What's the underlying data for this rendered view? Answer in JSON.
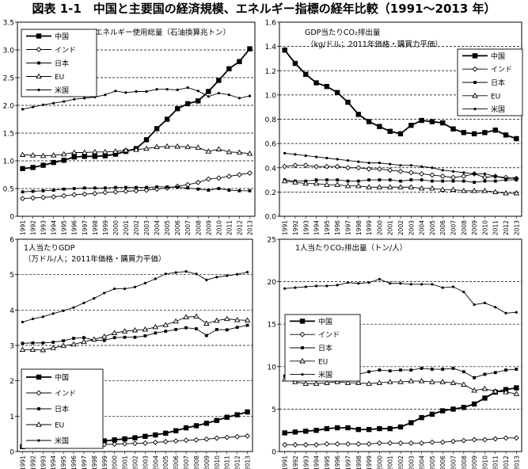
{
  "page_title": "図表 1-1　中国と主要国の経済規模、エネルギー指標の経年比較（1991〜2013 年）",
  "chart_data": [
    {
      "type": "line",
      "title": "エネルギー使用総量（石油換算兆トン）",
      "subtitle": "",
      "ylim": [
        0,
        3.5
      ],
      "y_ticks": [
        "0",
        "0.5",
        "1.0",
        "1.5",
        "2.0",
        "2.5",
        "3.0",
        "3.5"
      ],
      "grid": "horizontal dashed",
      "legend_position": "top-left",
      "categories": [
        "1991",
        "1992",
        "1993",
        "1994",
        "1995",
        "1996",
        "1997",
        "1998",
        "1999",
        "2000",
        "2001",
        "2002",
        "2003",
        "2004",
        "2005",
        "2006",
        "2007",
        "2008",
        "2009",
        "2010",
        "2011",
        "2012",
        "2013"
      ],
      "series": [
        {
          "name": "中国",
          "marker": "filled-square",
          "values": [
            0.86,
            0.88,
            0.92,
            0.97,
            1.01,
            1.07,
            1.08,
            1.08,
            1.09,
            1.12,
            1.17,
            1.22,
            1.38,
            1.58,
            1.75,
            1.94,
            2.03,
            2.08,
            2.25,
            2.45,
            2.66,
            2.79,
            3.02
          ]
        },
        {
          "name": "インド",
          "marker": "open-diamond",
          "values": [
            0.32,
            0.33,
            0.34,
            0.35,
            0.37,
            0.39,
            0.4,
            0.41,
            0.43,
            0.44,
            0.45,
            0.46,
            0.47,
            0.49,
            0.51,
            0.54,
            0.57,
            0.61,
            0.67,
            0.69,
            0.72,
            0.75,
            0.78
          ]
        },
        {
          "name": "日本",
          "marker": "filled-small-square",
          "values": [
            0.44,
            0.45,
            0.46,
            0.47,
            0.49,
            0.5,
            0.51,
            0.51,
            0.51,
            0.52,
            0.52,
            0.52,
            0.52,
            0.53,
            0.53,
            0.52,
            0.51,
            0.49,
            0.47,
            0.5,
            0.47,
            0.46,
            0.46
          ]
        },
        {
          "name": "EU",
          "marker": "open-triangle",
          "values": [
            1.11,
            1.1,
            1.09,
            1.1,
            1.12,
            1.15,
            1.15,
            1.16,
            1.16,
            1.17,
            1.19,
            1.2,
            1.22,
            1.25,
            1.26,
            1.26,
            1.25,
            1.24,
            1.17,
            1.21,
            1.16,
            1.15,
            1.13
          ]
        },
        {
          "name": "米国",
          "marker": "dot",
          "values": [
            1.93,
            1.97,
            2.01,
            2.04,
            2.07,
            2.11,
            2.13,
            2.15,
            2.19,
            2.26,
            2.23,
            2.25,
            2.25,
            2.29,
            2.29,
            2.28,
            2.32,
            2.26,
            2.16,
            2.22,
            2.19,
            2.13,
            2.17
          ]
        }
      ]
    },
    {
      "type": "line",
      "title": "GDP当たりCO₂排出量",
      "subtitle": "（kg/ドル；2011年価格・購買力平価）",
      "ylim": [
        0,
        1.6
      ],
      "y_ticks": [
        "0.0",
        "0.2",
        "0.4",
        "0.6",
        "0.8",
        "1.0",
        "1.2",
        "1.4",
        "1.6"
      ],
      "grid": "horizontal dashed",
      "legend_position": "top-right",
      "categories": [
        "1991",
        "1992",
        "1993",
        "1994",
        "1995",
        "1996",
        "1997",
        "1998",
        "1999",
        "2000",
        "2001",
        "2002",
        "2003",
        "2004",
        "2005",
        "2006",
        "2007",
        "2008",
        "2009",
        "2010",
        "2011",
        "2012",
        "2013"
      ],
      "series": [
        {
          "name": "中国",
          "marker": "filled-square",
          "values": [
            1.37,
            1.26,
            1.17,
            1.1,
            1.07,
            1.02,
            0.94,
            0.84,
            0.78,
            0.74,
            0.7,
            0.68,
            0.75,
            0.79,
            0.78,
            0.77,
            0.72,
            0.69,
            0.68,
            0.69,
            0.71,
            0.67,
            0.64
          ]
        },
        {
          "name": "インド",
          "marker": "open-diamond",
          "values": [
            0.41,
            0.42,
            0.42,
            0.41,
            0.41,
            0.41,
            0.4,
            0.4,
            0.39,
            0.39,
            0.38,
            0.37,
            0.36,
            0.35,
            0.34,
            0.33,
            0.32,
            0.33,
            0.35,
            0.32,
            0.33,
            0.32,
            0.31
          ]
        },
        {
          "name": "日本",
          "marker": "filled-small-square",
          "values": [
            0.3,
            0.29,
            0.29,
            0.3,
            0.3,
            0.3,
            0.29,
            0.29,
            0.3,
            0.3,
            0.3,
            0.29,
            0.3,
            0.3,
            0.29,
            0.29,
            0.29,
            0.29,
            0.28,
            0.29,
            0.29,
            0.3,
            0.3
          ]
        },
        {
          "name": "EU",
          "marker": "open-triangle",
          "values": [
            0.29,
            0.28,
            0.27,
            0.27,
            0.26,
            0.26,
            0.25,
            0.25,
            0.24,
            0.24,
            0.24,
            0.24,
            0.24,
            0.23,
            0.23,
            0.22,
            0.22,
            0.21,
            0.21,
            0.21,
            0.2,
            0.19,
            0.19
          ]
        },
        {
          "name": "米国",
          "marker": "dot",
          "values": [
            0.52,
            0.51,
            0.5,
            0.49,
            0.48,
            0.47,
            0.46,
            0.45,
            0.44,
            0.44,
            0.43,
            0.42,
            0.42,
            0.41,
            0.4,
            0.38,
            0.37,
            0.36,
            0.35,
            0.35,
            0.33,
            0.31,
            0.32
          ]
        }
      ]
    },
    {
      "type": "line",
      "title": "1人当たりGDP",
      "subtitle": "（万ドル/人；2011年価格・購買力平価）",
      "ylim": [
        0,
        6
      ],
      "y_ticks": [
        "0",
        "1",
        "2",
        "3",
        "4",
        "5",
        "6"
      ],
      "grid": "horizontal dashed",
      "legend_position": "bottom-left",
      "categories": [
        "1991",
        "1992",
        "1993",
        "1994",
        "1995",
        "1996",
        "1997",
        "1998",
        "1999",
        "2000",
        "2001",
        "2002",
        "2003",
        "2004",
        "2005",
        "2006",
        "2007",
        "2008",
        "2009",
        "2010",
        "2011",
        "2012",
        "2013"
      ],
      "series": [
        {
          "name": "中国",
          "marker": "filled-square",
          "values": [
            0.14,
            0.16,
            0.18,
            0.2,
            0.22,
            0.24,
            0.26,
            0.28,
            0.3,
            0.33,
            0.36,
            0.39,
            0.43,
            0.47,
            0.52,
            0.59,
            0.67,
            0.73,
            0.8,
            0.88,
            0.97,
            1.04,
            1.12
          ]
        },
        {
          "name": "インド",
          "marker": "open-diamond",
          "values": [
            0.14,
            0.15,
            0.15,
            0.16,
            0.17,
            0.18,
            0.18,
            0.19,
            0.2,
            0.21,
            0.22,
            0.23,
            0.24,
            0.26,
            0.28,
            0.3,
            0.32,
            0.33,
            0.35,
            0.38,
            0.4,
            0.42,
            0.44
          ]
        },
        {
          "name": "日本",
          "marker": "filled-small-square",
          "values": [
            3.06,
            3.07,
            3.07,
            3.09,
            3.13,
            3.2,
            3.22,
            3.15,
            3.14,
            3.22,
            3.23,
            3.23,
            3.27,
            3.35,
            3.4,
            3.45,
            3.5,
            3.47,
            3.28,
            3.45,
            3.44,
            3.51,
            3.57
          ]
        },
        {
          "name": "EU",
          "marker": "open-triangle",
          "values": [
            2.88,
            2.88,
            2.87,
            2.93,
            2.99,
            3.03,
            3.1,
            3.17,
            3.25,
            3.35,
            3.4,
            3.43,
            3.45,
            3.52,
            3.58,
            3.68,
            3.8,
            3.82,
            3.62,
            3.7,
            3.75,
            3.72,
            3.71
          ]
        },
        {
          "name": "米国",
          "marker": "dot",
          "values": [
            3.66,
            3.75,
            3.81,
            3.9,
            3.98,
            4.07,
            4.2,
            4.33,
            4.48,
            4.6,
            4.6,
            4.65,
            4.76,
            4.88,
            5.02,
            5.06,
            5.09,
            5.02,
            4.85,
            4.93,
            4.97,
            5.01,
            5.07
          ]
        }
      ]
    },
    {
      "type": "line",
      "title": "1人当たりCO₂排出量（トン/人）",
      "subtitle": "",
      "ylim": [
        0,
        25
      ],
      "y_ticks": [
        "0",
        "5",
        "10",
        "15",
        "20",
        "25"
      ],
      "grid": "horizontal dashed",
      "legend_position": "left-center",
      "categories": [
        "1991",
        "1992",
        "1993",
        "1994",
        "1995",
        "1996",
        "1997",
        "1998",
        "1999",
        "2000",
        "2001",
        "2002",
        "2003",
        "2004",
        "2005",
        "2006",
        "2007",
        "2008",
        "2009",
        "2010",
        "2011",
        "2012",
        "2013"
      ],
      "series": [
        {
          "name": "中国",
          "marker": "filled-square",
          "values": [
            2.2,
            2.3,
            2.4,
            2.5,
            2.7,
            2.8,
            2.8,
            2.6,
            2.6,
            2.7,
            2.7,
            2.9,
            3.4,
            4.0,
            4.4,
            4.8,
            5.0,
            5.2,
            5.6,
            6.3,
            7.0,
            7.3,
            7.5
          ]
        },
        {
          "name": "インド",
          "marker": "open-diamond",
          "values": [
            0.8,
            0.8,
            0.8,
            0.8,
            0.9,
            0.9,
            0.9,
            0.9,
            0.9,
            1.0,
            1.0,
            1.0,
            1.0,
            1.0,
            1.1,
            1.1,
            1.2,
            1.3,
            1.4,
            1.4,
            1.5,
            1.6,
            1.6
          ]
        },
        {
          "name": "日本",
          "marker": "filled-small-square",
          "values": [
            8.9,
            8.9,
            8.8,
            9.2,
            9.3,
            9.4,
            9.4,
            9.1,
            9.4,
            9.6,
            9.5,
            9.6,
            9.6,
            9.8,
            9.7,
            9.7,
            9.8,
            9.4,
            8.7,
            9.1,
            9.3,
            9.6,
            9.7
          ]
        },
        {
          "name": "EU",
          "marker": "open-triangle",
          "values": [
            8.5,
            8.2,
            8.0,
            8.0,
            8.1,
            8.2,
            8.1,
            8.1,
            8.0,
            8.1,
            8.2,
            8.2,
            8.3,
            8.3,
            8.2,
            8.2,
            8.1,
            7.9,
            7.2,
            7.4,
            7.1,
            7.0,
            6.8
          ]
        },
        {
          "name": "米国",
          "marker": "dot",
          "values": [
            19.2,
            19.3,
            19.4,
            19.5,
            19.5,
            19.6,
            19.9,
            19.8,
            19.9,
            20.3,
            19.8,
            19.8,
            19.7,
            19.7,
            19.7,
            19.3,
            19.4,
            18.8,
            17.3,
            17.5,
            17.0,
            16.3,
            16.4
          ]
        }
      ]
    }
  ]
}
